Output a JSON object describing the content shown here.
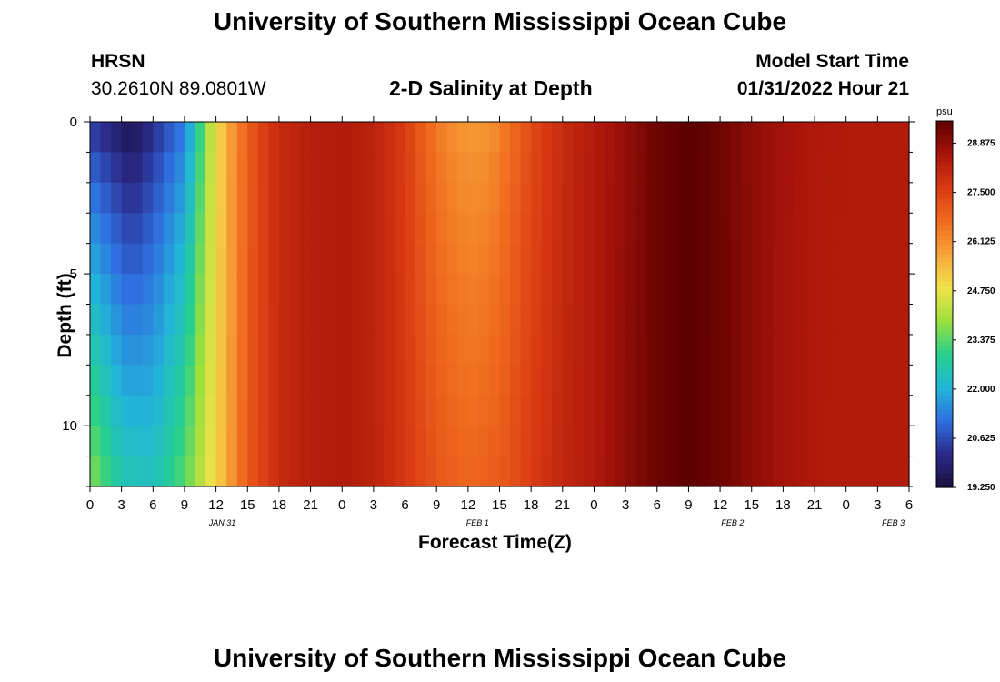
{
  "page_title": "University of Southern Mississippi Ocean Cube",
  "footer_title": "University of Southern Mississippi Ocean Cube",
  "station": {
    "name": "HRSN",
    "coords": "30.2610N  89.0801W"
  },
  "plot_title": "2-D Salinity at Depth",
  "model_start": {
    "label": "Model Start Time",
    "value": "01/31/2022 Hour 21"
  },
  "chart_data": {
    "type": "heatmap",
    "title": "2-D Salinity at Depth",
    "xlabel": "Forecast Time(Z)",
    "ylabel": "Depth (ft)",
    "y_ticks": [
      "0",
      "5",
      "10"
    ],
    "ylim": [
      0,
      12
    ],
    "x_hours": [
      0,
      3,
      6,
      9,
      12,
      15,
      18,
      21,
      0,
      3,
      6,
      9,
      12,
      15,
      18,
      21,
      0,
      3,
      6,
      9,
      12,
      15,
      18,
      21,
      0,
      3,
      6
    ],
    "x_tick_labels": [
      "0",
      "3",
      "6",
      "9",
      "12",
      "15",
      "18",
      "21",
      "0",
      "3",
      "6",
      "9",
      "12",
      "15",
      "18",
      "21",
      "0",
      "3",
      "6",
      "9",
      "12",
      "15",
      "18",
      "21",
      "0",
      "3",
      "6"
    ],
    "date_labels": [
      {
        "label": "JAN 31",
        "at_hour_index": 4.2
      },
      {
        "label": "FEB 1",
        "at_hour_index": 12.3
      },
      {
        "label": "FEB 2",
        "at_hour_index": 20.4
      },
      {
        "label": "FEB 3",
        "at_hour_index": 25.5
      }
    ],
    "colorbar": {
      "unit": "psu",
      "min": 19.25,
      "max": 29.5,
      "ticks": [
        "28.875",
        "27.500",
        "26.125",
        "24.750",
        "23.375",
        "22.000",
        "20.625",
        "19.250"
      ],
      "tick_values": [
        28.875,
        27.5,
        26.125,
        24.75,
        23.375,
        22.0,
        20.625,
        19.25
      ]
    },
    "surface_salinity_by_hour": [
      {
        "x": 0,
        "v": 20.3
      },
      {
        "x": 3,
        "v": 19.6
      },
      {
        "x": 4,
        "v": 19.3
      },
      {
        "x": 6,
        "v": 20.1
      },
      {
        "x": 9,
        "v": 21.2
      },
      {
        "x": 11,
        "v": 23.6
      },
      {
        "x": 12,
        "v": 24.8
      },
      {
        "x": 14,
        "v": 26.3
      },
      {
        "x": 16,
        "v": 27.4
      },
      {
        "x": 18,
        "v": 28.0
      },
      {
        "x": 21,
        "v": 28.3
      },
      {
        "x": 24,
        "v": 28.4
      },
      {
        "x": 27,
        "v": 28.2
      },
      {
        "x": 30,
        "v": 27.6
      },
      {
        "x": 32,
        "v": 26.8
      },
      {
        "x": 34,
        "v": 26.2
      },
      {
        "x": 36,
        "v": 25.9
      },
      {
        "x": 38,
        "v": 26.0
      },
      {
        "x": 40,
        "v": 26.6
      },
      {
        "x": 42,
        "v": 27.3
      },
      {
        "x": 45,
        "v": 28.0
      },
      {
        "x": 48,
        "v": 28.4
      },
      {
        "x": 51,
        "v": 28.8
      },
      {
        "x": 54,
        "v": 29.3
      },
      {
        "x": 57,
        "v": 29.5
      },
      {
        "x": 59,
        "v": 29.4
      },
      {
        "x": 62,
        "v": 29.0
      },
      {
        "x": 65,
        "v": 28.7
      },
      {
        "x": 68,
        "v": 28.5
      },
      {
        "x": 72,
        "v": 28.4
      },
      {
        "x": 75,
        "v": 28.4
      },
      {
        "x": 78,
        "v": 28.4
      }
    ],
    "bottom_salinity_by_hour": [
      {
        "x": 0,
        "v": 23.8
      },
      {
        "x": 3,
        "v": 22.6
      },
      {
        "x": 6,
        "v": 22.4
      },
      {
        "x": 9,
        "v": 23.4
      },
      {
        "x": 12,
        "v": 25.0
      },
      {
        "x": 15,
        "v": 27.0
      },
      {
        "x": 18,
        "v": 28.0
      },
      {
        "x": 21,
        "v": 28.3
      },
      {
        "x": 24,
        "v": 28.4
      },
      {
        "x": 27,
        "v": 28.2
      },
      {
        "x": 30,
        "v": 27.7
      },
      {
        "x": 33,
        "v": 27.1
      },
      {
        "x": 36,
        "v": 26.8
      },
      {
        "x": 39,
        "v": 27.0
      },
      {
        "x": 42,
        "v": 27.6
      },
      {
        "x": 45,
        "v": 28.1
      },
      {
        "x": 48,
        "v": 28.4
      },
      {
        "x": 51,
        "v": 28.9
      },
      {
        "x": 54,
        "v": 29.3
      },
      {
        "x": 57,
        "v": 29.5
      },
      {
        "x": 60,
        "v": 29.3
      },
      {
        "x": 63,
        "v": 28.9
      },
      {
        "x": 66,
        "v": 28.6
      },
      {
        "x": 70,
        "v": 28.4
      },
      {
        "x": 78,
        "v": 28.4
      }
    ]
  },
  "colors": {
    "palette": [
      "#1a1040",
      "#2b2a8a",
      "#2f6fe0",
      "#22b6d8",
      "#27d08c",
      "#9ee03c",
      "#f2e24a",
      "#f7a43a",
      "#f06a1e",
      "#d83a12",
      "#a8140a",
      "#5c0000"
    ]
  }
}
